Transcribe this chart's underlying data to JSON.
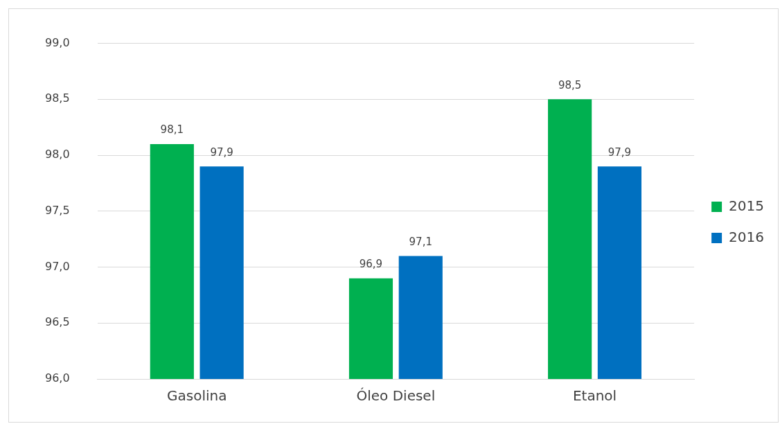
{
  "chart_data": {
    "type": "bar",
    "categories": [
      "Gasolina",
      "Óleo Diesel",
      "Etanol"
    ],
    "series": [
      {
        "name": "2015",
        "color": "#00b050",
        "values": [
          98.1,
          96.9,
          98.5
        ],
        "value_labels": [
          "98,1",
          "96,9",
          "98,5"
        ]
      },
      {
        "name": "2016",
        "color": "#0070c0",
        "values": [
          97.9,
          97.1,
          97.9
        ],
        "value_labels": [
          "97,9",
          "97,1",
          "97,9"
        ]
      }
    ],
    "ylim": [
      96,
      99
    ],
    "yticks": [
      {
        "value": 96,
        "label": "96,0"
      },
      {
        "value": 96.5,
        "label": "96,5"
      },
      {
        "value": 97,
        "label": "97,0"
      },
      {
        "value": 97.5,
        "label": "97,5"
      },
      {
        "value": 98,
        "label": "98,0"
      },
      {
        "value": 98.5,
        "label": "98,5"
      },
      {
        "value": 99,
        "label": "99,0"
      }
    ],
    "grid": "y",
    "legend": "right"
  }
}
